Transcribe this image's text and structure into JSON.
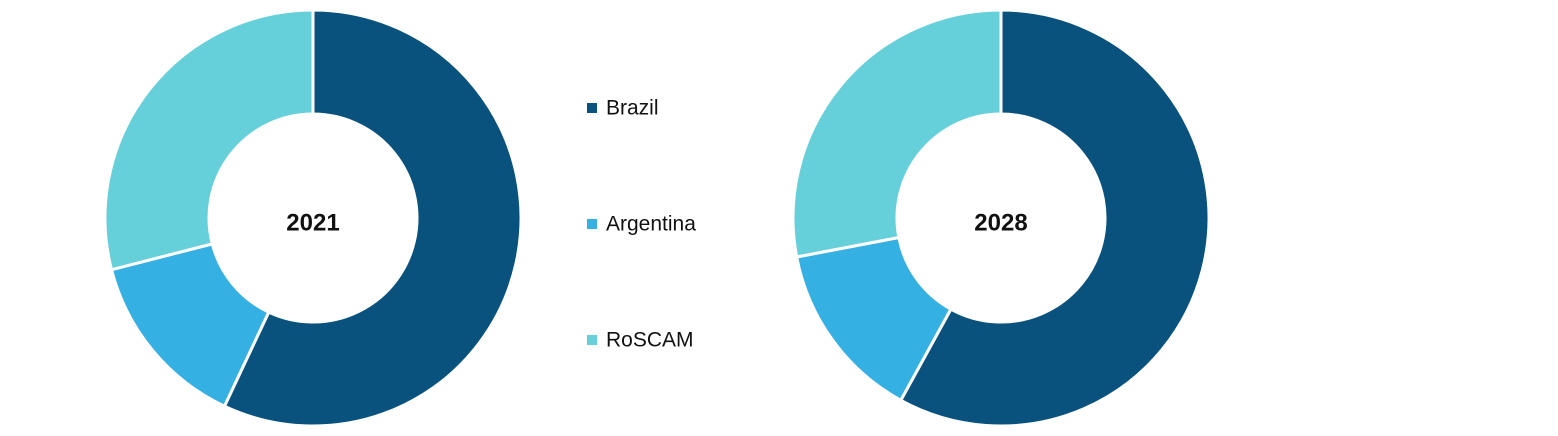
{
  "chart_data": [
    {
      "type": "pie",
      "title": "2021",
      "categories": [
        "Brazil",
        "Argentina",
        "RoSCAM"
      ],
      "values": [
        57,
        14,
        29
      ],
      "colors": [
        "#0a527e",
        "#35b0e2",
        "#66d0da"
      ]
    },
    {
      "type": "pie",
      "title": "2028",
      "categories": [
        "Brazil",
        "Argentina",
        "RoSCAM"
      ],
      "values": [
        58,
        14,
        28
      ],
      "colors": [
        "#0a527e",
        "#35b0e2",
        "#66d0da"
      ]
    }
  ]
}
